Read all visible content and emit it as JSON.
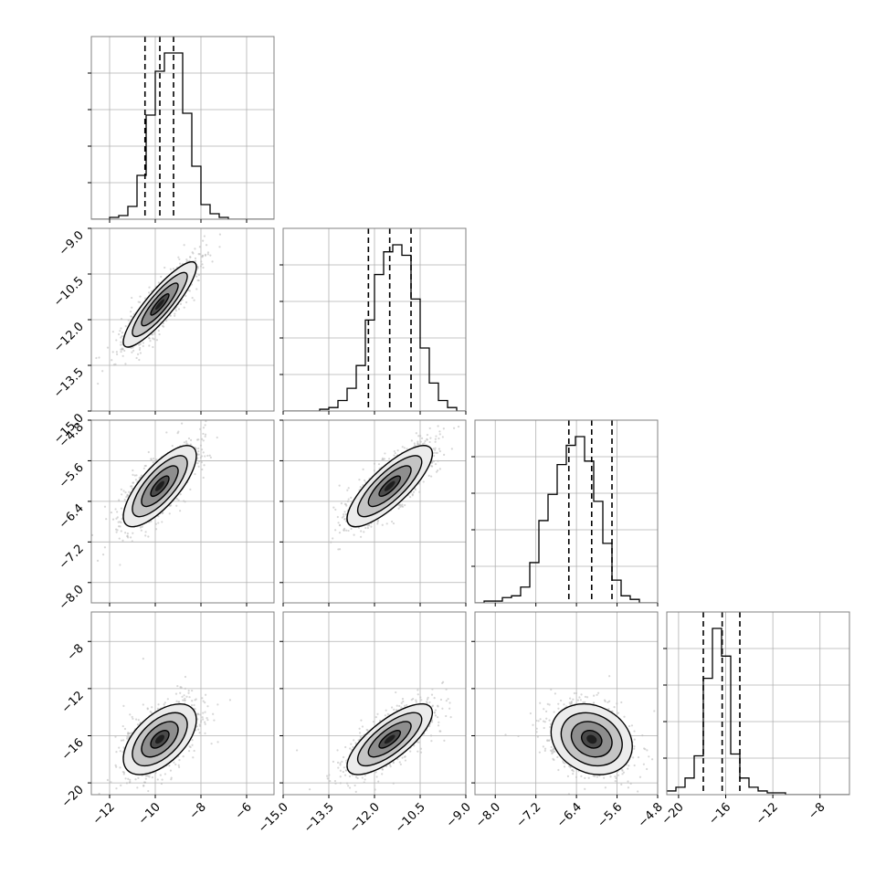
{
  "chart_data": {
    "type": "scatter",
    "variant": "corner-plot",
    "grid": true,
    "style": {
      "frame_color": "#808080",
      "grid_color": "#b0b0b0",
      "hist_color": "#000000",
      "scatter_color": "#bdbdbd",
      "contour_color": "#000000",
      "density_fills": [
        "#ececec",
        "#c4c4c4",
        "#8e8e8e",
        "#4a4a4a",
        "#1e1e1e"
      ]
    },
    "parameters": [
      {
        "range": [
          -12.8,
          -4.8
        ],
        "ticks": [
          -12,
          -10,
          -8,
          -6
        ],
        "ytick_labels_shown": [],
        "mean": -9.8,
        "sd": 0.8,
        "quantiles": [
          -10.45,
          -9.8,
          -9.2
        ]
      },
      {
        "range": [
          -15.0,
          -9.0
        ],
        "ticks": [
          -15.0,
          -13.5,
          -12.0,
          -10.5,
          -9.0
        ],
        "tick_labels": [
          "−15.0",
          "−13.5",
          "−12.0",
          "−10.5",
          "−9.0"
        ],
        "mean": -11.5,
        "sd": 0.7,
        "quantiles": [
          -12.2,
          -11.5,
          -10.8
        ]
      },
      {
        "range": [
          -8.4,
          -4.8
        ],
        "ticks": [
          -8.0,
          -7.2,
          -6.4,
          -5.6,
          -4.8
        ],
        "tick_labels": [
          "−8.0",
          "−7.2",
          "−6.4",
          "−5.6",
          "−4.8"
        ],
        "mean": -6.1,
        "sd": 0.4,
        "quantiles": [
          -6.55,
          -6.1,
          -5.7
        ]
      },
      {
        "range": [
          -21.0,
          -5.5
        ],
        "ticks": [
          -20,
          -16,
          -12,
          -8
        ],
        "tick_labels": [
          "−20",
          "−16",
          "−12",
          "−8"
        ],
        "mean": -16.3,
        "sd": 1.5,
        "quantiles": [
          -17.9,
          -16.3,
          -14.8
        ]
      }
    ],
    "x_tick_labels_param0": [
      "−12",
      "−10",
      "−8",
      "−6"
    ],
    "histograms": [
      {
        "param": 0,
        "bin_step": 0.4,
        "counts": [
          0,
          0,
          1,
          2,
          7,
          24,
          57,
          81,
          91,
          91,
          58,
          29,
          8,
          3,
          1,
          0,
          0,
          0,
          0,
          0
        ]
      },
      {
        "param": 1,
        "bin_step": 0.3,
        "counts": [
          0,
          0,
          0,
          0,
          1,
          2,
          6,
          13,
          26,
          52,
          78,
          91,
          95,
          89,
          64,
          36,
          16,
          6,
          2,
          0
        ]
      },
      {
        "param": 2,
        "bin_step": 0.18,
        "counts": [
          0,
          1,
          1,
          3,
          4,
          9,
          23,
          47,
          62,
          79,
          90,
          95,
          81,
          58,
          34,
          13,
          4,
          2,
          0,
          0
        ]
      },
      {
        "param": 3,
        "bin_step": 0.775,
        "counts": [
          2,
          4,
          9,
          21,
          63,
          90,
          75,
          22,
          9,
          4,
          2,
          1,
          1,
          0,
          0,
          0,
          0,
          0,
          0,
          0
        ]
      }
    ],
    "pairs": [
      {
        "x": 0,
        "y": 1,
        "corr": 0.88
      },
      {
        "x": 0,
        "y": 2,
        "corr": 0.75
      },
      {
        "x": 1,
        "y": 2,
        "corr": 0.8
      },
      {
        "x": 0,
        "y": 3,
        "corr": 0.55
      },
      {
        "x": 1,
        "y": 3,
        "corr": 0.75
      },
      {
        "x": 2,
        "y": 3,
        "corr": -0.2
      }
    ],
    "contour_levels_sigma": [
      0.5,
      1.0,
      1.5,
      2.0
    ]
  }
}
